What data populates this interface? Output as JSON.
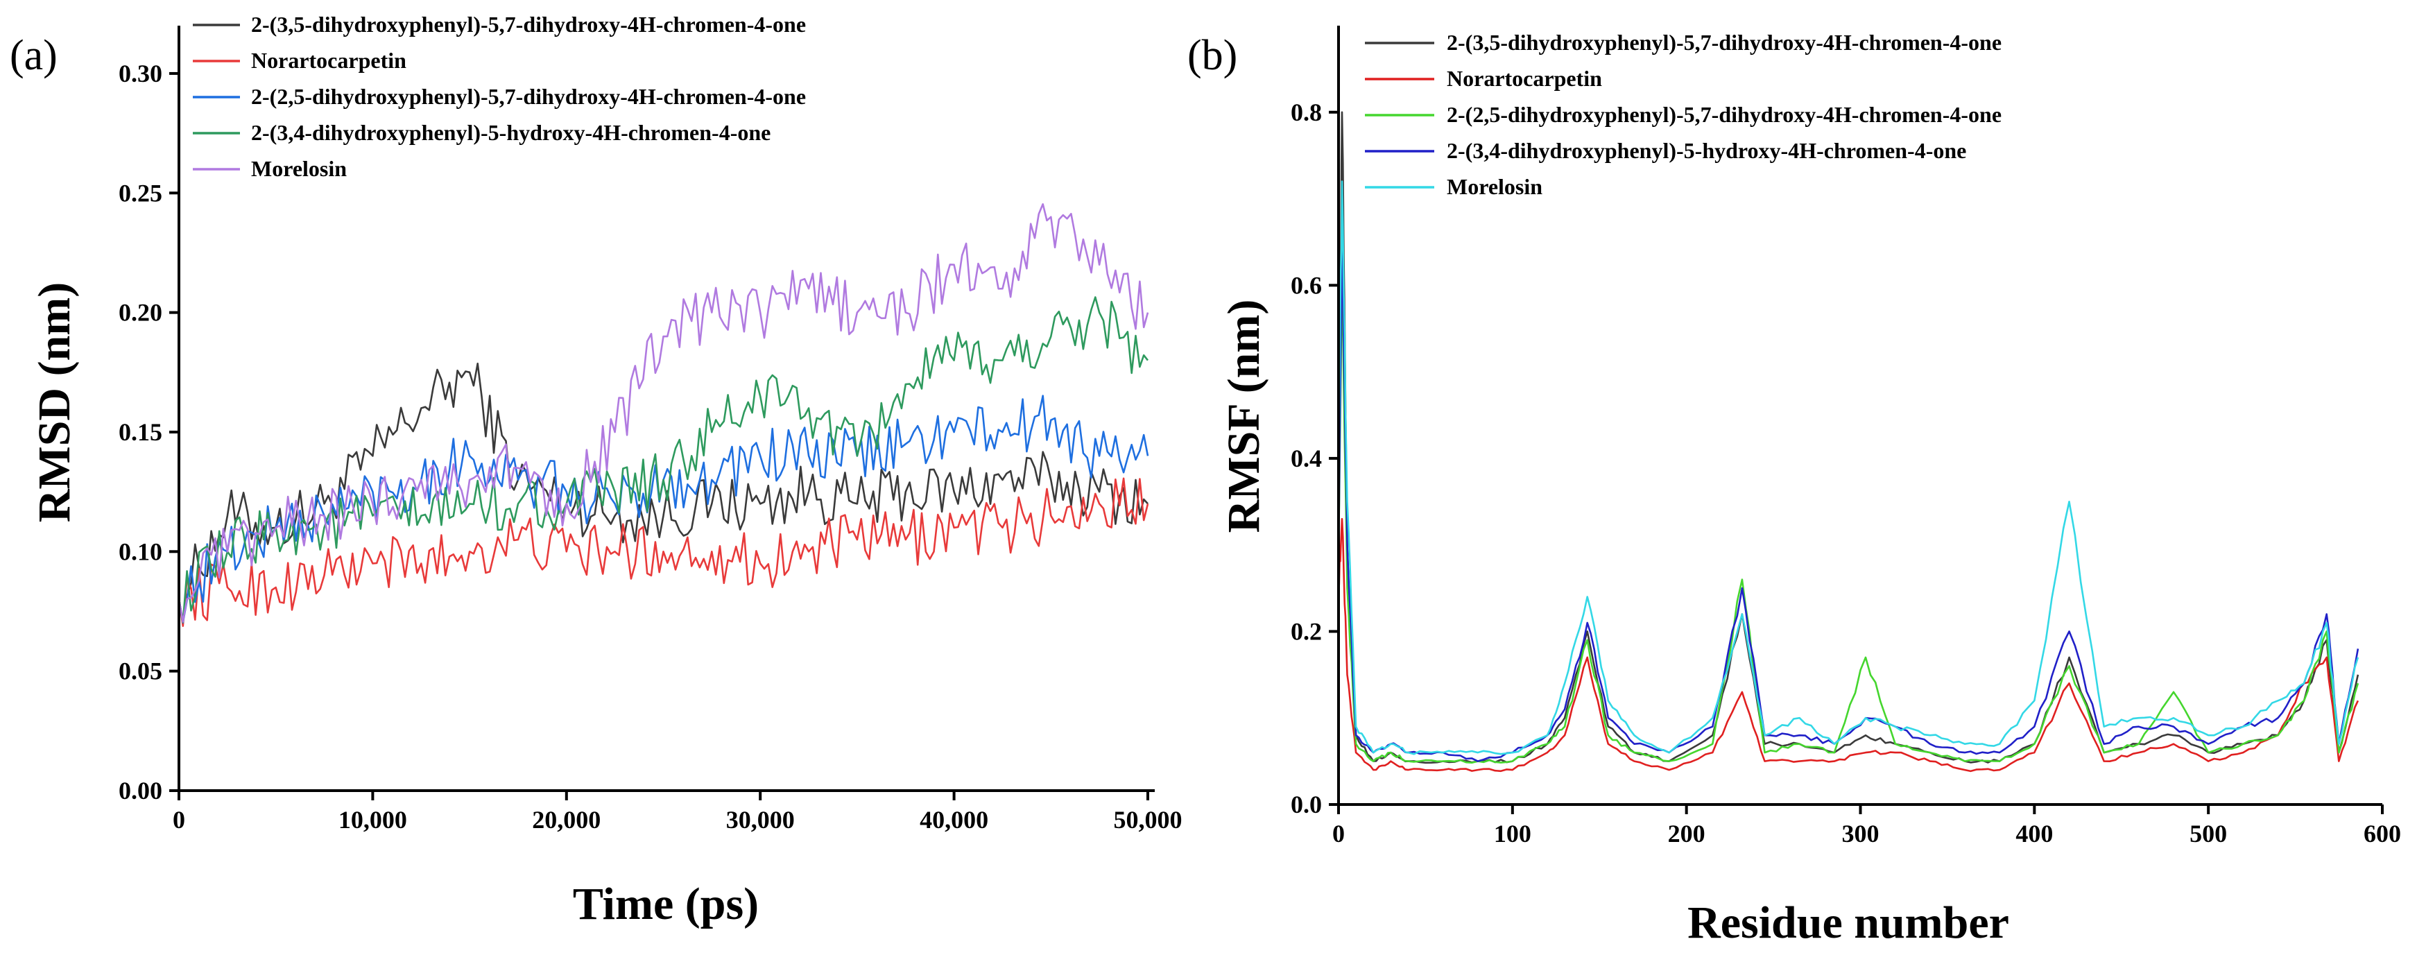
{
  "chart_data": [
    {
      "panel": "(a)",
      "type": "line",
      "title": "",
      "xlabel": "Time (ps)",
      "ylabel": "RMSD (nm)",
      "xlim": [
        0,
        50000
      ],
      "ylim": [
        0,
        0.32
      ],
      "x_ticks": [
        0,
        10000,
        20000,
        30000,
        40000,
        50000
      ],
      "x_tick_labels": [
        "0",
        "10,000",
        "20,000",
        "30,000",
        "40,000",
        "50,000"
      ],
      "y_ticks": [
        0,
        0.05,
        0.1,
        0.15,
        0.2,
        0.25,
        0.3
      ],
      "y_tick_labels": [
        "0.00",
        "0.05",
        "0.10",
        "0.15",
        "0.20",
        "0.25",
        "0.30"
      ],
      "legend_location": "top-left",
      "x": [
        0,
        2500,
        5000,
        7500,
        10000,
        12500,
        15000,
        17500,
        20000,
        22500,
        25000,
        27500,
        30000,
        32500,
        35000,
        37500,
        40000,
        42500,
        45000,
        47500,
        50000
      ],
      "series": [
        {
          "name": "2-(3,5-dihydroxyphenyl)-5,7-dihydroxy-4H-chromen-4-one",
          "color": "#3a3a3a",
          "values": [
            0.08,
            0.115,
            0.11,
            0.12,
            0.14,
            0.16,
            0.175,
            0.13,
            0.12,
            0.115,
            0.115,
            0.12,
            0.12,
            0.125,
            0.12,
            0.125,
            0.125,
            0.13,
            0.13,
            0.125,
            0.12
          ]
        },
        {
          "name": "Norartocarpetin",
          "color": "#e83a3a",
          "values": [
            0.08,
            0.085,
            0.085,
            0.09,
            0.095,
            0.095,
            0.1,
            0.105,
            0.1,
            0.1,
            0.1,
            0.1,
            0.095,
            0.1,
            0.105,
            0.105,
            0.11,
            0.11,
            0.115,
            0.12,
            0.12
          ]
        },
        {
          "name": "2-(2,5-dihydroxyphenyl)-5,7-dihydroxy-4H-chromen-4-one",
          "color": "#1e6fe0",
          "values": [
            0.08,
            0.1,
            0.11,
            0.115,
            0.125,
            0.13,
            0.14,
            0.13,
            0.125,
            0.12,
            0.13,
            0.13,
            0.14,
            0.14,
            0.14,
            0.145,
            0.15,
            0.15,
            0.155,
            0.14,
            0.14
          ]
        },
        {
          "name": "2-(3,4-dihydroxyphenyl)-5-hydroxy-4H-chromen-4-one",
          "color": "#2e9a5e",
          "values": [
            0.08,
            0.1,
            0.11,
            0.11,
            0.115,
            0.115,
            0.12,
            0.12,
            0.12,
            0.125,
            0.13,
            0.15,
            0.165,
            0.16,
            0.14,
            0.17,
            0.18,
            0.18,
            0.19,
            0.2,
            0.18
          ]
        },
        {
          "name": "Morelosin",
          "color": "#b07ae0",
          "values": [
            0.08,
            0.1,
            0.11,
            0.115,
            0.12,
            0.13,
            0.13,
            0.135,
            0.12,
            0.15,
            0.19,
            0.2,
            0.2,
            0.21,
            0.2,
            0.2,
            0.22,
            0.21,
            0.24,
            0.22,
            0.2
          ]
        }
      ]
    },
    {
      "panel": "(b)",
      "type": "line",
      "title": "",
      "xlabel": "Residue number",
      "ylabel": "RMSF (nm)",
      "xlim": [
        0,
        600
      ],
      "ylim": [
        0,
        0.9
      ],
      "x_ticks": [
        0,
        100,
        200,
        300,
        400,
        500,
        600
      ],
      "x_tick_labels": [
        "0",
        "100",
        "200",
        "300",
        "400",
        "500",
        "600"
      ],
      "y_ticks": [
        0,
        0.2,
        0.4,
        0.6,
        0.8
      ],
      "y_tick_labels": [
        "0.0",
        "0.2",
        "0.4",
        "0.6",
        "0.8"
      ],
      "legend_location": "top-left",
      "x": [
        0,
        2,
        5,
        10,
        20,
        30,
        40,
        60,
        80,
        100,
        120,
        130,
        143,
        155,
        170,
        190,
        215,
        232,
        245,
        265,
        285,
        303,
        320,
        340,
        360,
        380,
        400,
        420,
        440,
        460,
        480,
        500,
        520,
        540,
        555,
        568,
        575,
        586
      ],
      "series": [
        {
          "name": "2-(3,5-dihydroxyphenyl)-5,7-dihydroxy-4H-chromen-4-one",
          "color": "#3a3a3a",
          "values": [
            0.3,
            0.8,
            0.3,
            0.08,
            0.05,
            0.06,
            0.05,
            0.05,
            0.05,
            0.05,
            0.07,
            0.1,
            0.2,
            0.09,
            0.06,
            0.05,
            0.08,
            0.22,
            0.07,
            0.07,
            0.06,
            0.08,
            0.07,
            0.06,
            0.05,
            0.05,
            0.07,
            0.17,
            0.06,
            0.07,
            0.08,
            0.06,
            0.07,
            0.08,
            0.12,
            0.19,
            0.06,
            0.15
          ]
        },
        {
          "name": "Norartocarpetin",
          "color": "#e02020",
          "values": [
            0.25,
            0.33,
            0.15,
            0.06,
            0.04,
            0.05,
            0.04,
            0.04,
            0.04,
            0.04,
            0.06,
            0.08,
            0.17,
            0.07,
            0.05,
            0.04,
            0.06,
            0.13,
            0.05,
            0.05,
            0.05,
            0.06,
            0.06,
            0.05,
            0.04,
            0.04,
            0.06,
            0.14,
            0.05,
            0.06,
            0.07,
            0.05,
            0.06,
            0.08,
            0.14,
            0.17,
            0.05,
            0.12
          ]
        },
        {
          "name": "2-(2,5-dihydroxyphenyl)-5,7-dihydroxy-4H-chromen-4-one",
          "color": "#45d62e",
          "values": [
            0.3,
            0.6,
            0.25,
            0.07,
            0.05,
            0.06,
            0.05,
            0.05,
            0.05,
            0.05,
            0.07,
            0.09,
            0.19,
            0.08,
            0.06,
            0.05,
            0.07,
            0.26,
            0.06,
            0.07,
            0.06,
            0.17,
            0.07,
            0.06,
            0.05,
            0.05,
            0.07,
            0.16,
            0.06,
            0.07,
            0.13,
            0.06,
            0.07,
            0.08,
            0.12,
            0.2,
            0.06,
            0.14
          ]
        },
        {
          "name": "2-(3,4-dihydroxyphenyl)-5-hydroxy-4H-chromen-4-one",
          "color": "#2020c8",
          "values": [
            0.3,
            0.65,
            0.3,
            0.08,
            0.06,
            0.07,
            0.06,
            0.06,
            0.05,
            0.06,
            0.08,
            0.11,
            0.21,
            0.1,
            0.07,
            0.06,
            0.09,
            0.25,
            0.08,
            0.08,
            0.07,
            0.1,
            0.09,
            0.07,
            0.06,
            0.06,
            0.09,
            0.2,
            0.07,
            0.09,
            0.09,
            0.07,
            0.09,
            0.1,
            0.14,
            0.22,
            0.07,
            0.18
          ]
        },
        {
          "name": "Morelosin",
          "color": "#33d8e6",
          "values": [
            0.4,
            0.72,
            0.35,
            0.09,
            0.06,
            0.07,
            0.06,
            0.06,
            0.06,
            0.06,
            0.08,
            0.14,
            0.24,
            0.12,
            0.08,
            0.06,
            0.1,
            0.22,
            0.08,
            0.1,
            0.07,
            0.1,
            0.09,
            0.08,
            0.07,
            0.07,
            0.12,
            0.35,
            0.09,
            0.1,
            0.1,
            0.08,
            0.09,
            0.12,
            0.14,
            0.21,
            0.07,
            0.17
          ]
        }
      ]
    }
  ]
}
